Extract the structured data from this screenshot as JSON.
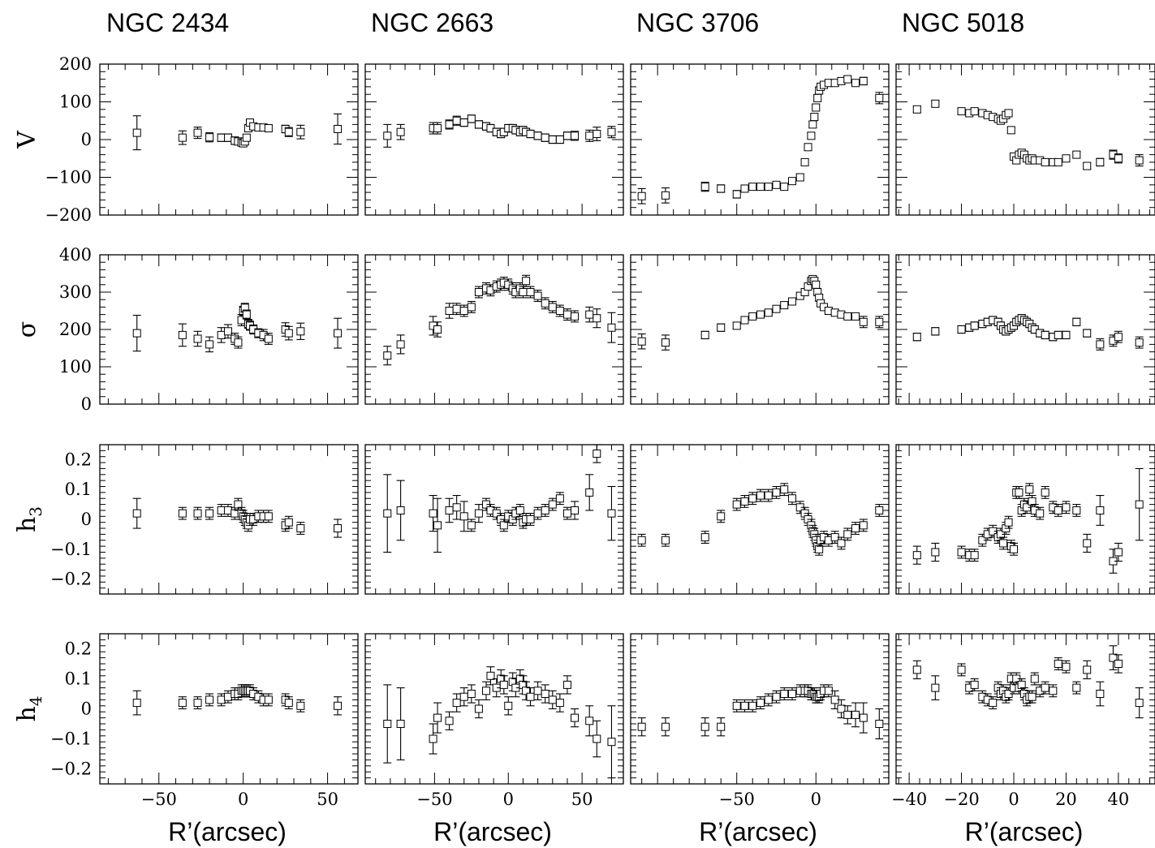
{
  "galaxies": [
    "NGC 2434",
    "NGC 2663",
    "NGC 3706",
    "NGC 5018"
  ],
  "x_axis_label": "R’(arcsec)",
  "rows": [
    {
      "key": "V",
      "label": "V",
      "sub": "",
      "ylim": [
        -200,
        200
      ],
      "ticks": [
        -200,
        -100,
        0,
        100,
        200
      ],
      "tick_labels": [
        "−200",
        "−100",
        "0",
        "100",
        "200"
      ]
    },
    {
      "key": "sigma",
      "label": "σ",
      "sub": "",
      "ylim": [
        0,
        400
      ],
      "ticks": [
        0,
        100,
        200,
        300,
        400
      ],
      "tick_labels": [
        "0",
        "100",
        "200",
        "300",
        "400"
      ]
    },
    {
      "key": "h3",
      "label": "h",
      "sub": "3",
      "ylim": [
        -0.25,
        0.25
      ],
      "ticks": [
        -0.2,
        -0.1,
        0,
        0.1,
        0.2
      ],
      "tick_labels": [
        "−0.2",
        "−0.1",
        "0",
        "0.1",
        "0.2"
      ]
    },
    {
      "key": "h4",
      "label": "h",
      "sub": "4",
      "ylim": [
        -0.25,
        0.25
      ],
      "ticks": [
        -0.2,
        -0.1,
        0,
        0.1,
        0.2
      ],
      "tick_labels": [
        "−0.2",
        "−0.1",
        "0",
        "0.1",
        "0.2"
      ]
    }
  ],
  "columns": [
    {
      "xlim": [
        -85,
        68
      ],
      "ticks": [
        -50,
        0,
        50
      ],
      "tick_labels": [
        "−50",
        "0",
        "50"
      ]
    },
    {
      "xlim": [
        -97,
        78
      ],
      "ticks": [
        -50,
        0,
        50
      ],
      "tick_labels": [
        "−50",
        "0",
        "50"
      ]
    },
    {
      "xlim": [
        -117,
        46
      ],
      "ticks": [
        -50,
        0
      ],
      "tick_labels": [
        "−50",
        "0"
      ]
    },
    {
      "xlim": [
        -45,
        54
      ],
      "ticks": [
        -40,
        -20,
        0,
        20,
        40
      ],
      "tick_labels": [
        "−40",
        "−20",
        "0",
        "20",
        "40"
      ]
    }
  ],
  "chart_data": [
    {
      "type": "scatter",
      "galaxy": "NGC 2434",
      "x": [
        -63,
        -36,
        -27,
        -20,
        -13,
        -9,
        -5,
        -3,
        -1,
        0,
        1,
        2,
        3,
        4,
        6,
        9,
        12,
        15,
        25,
        27,
        34,
        56
      ],
      "V": [
        18,
        5,
        18,
        6,
        5,
        5,
        -3,
        -5,
        -8,
        -10,
        -5,
        5,
        30,
        45,
        35,
        32,
        32,
        30,
        28,
        20,
        20,
        28
      ],
      "V_err": [
        45,
        18,
        15,
        12,
        10,
        10,
        10,
        8,
        8,
        8,
        8,
        8,
        8,
        8,
        8,
        8,
        8,
        8,
        10,
        12,
        18,
        40
      ],
      "sigma": [
        190,
        185,
        175,
        160,
        185,
        195,
        175,
        165,
        225,
        250,
        258,
        240,
        215,
        210,
        200,
        190,
        185,
        175,
        200,
        190,
        195,
        190
      ],
      "sigma_err": [
        48,
        30,
        20,
        20,
        20,
        18,
        15,
        15,
        15,
        12,
        12,
        12,
        12,
        12,
        12,
        12,
        15,
        15,
        18,
        18,
        22,
        40
      ],
      "h3": [
        0.02,
        0.02,
        0.02,
        0.02,
        0.03,
        0.03,
        0.02,
        0.05,
        0.02,
        0.01,
        0.0,
        -0.01,
        -0.02,
        0.0,
        0.0,
        0.01,
        0.01,
        0.01,
        -0.02,
        -0.01,
        -0.03,
        -0.03
      ],
      "h3_err": [
        0.05,
        0.02,
        0.02,
        0.02,
        0.02,
        0.02,
        0.02,
        0.02,
        0.02,
        0.02,
        0.02,
        0.02,
        0.02,
        0.02,
        0.02,
        0.02,
        0.02,
        0.02,
        0.02,
        0.02,
        0.02,
        0.03
      ],
      "h4": [
        0.02,
        0.02,
        0.02,
        0.03,
        0.03,
        0.04,
        0.05,
        0.05,
        0.06,
        0.06,
        0.06,
        0.06,
        0.06,
        0.06,
        0.05,
        0.04,
        0.03,
        0.03,
        0.03,
        0.02,
        0.01,
        0.01
      ],
      "h4_err": [
        0.04,
        0.02,
        0.02,
        0.02,
        0.02,
        0.02,
        0.02,
        0.02,
        0.02,
        0.02,
        0.02,
        0.02,
        0.02,
        0.02,
        0.02,
        0.02,
        0.02,
        0.02,
        0.02,
        0.02,
        0.02,
        0.03
      ]
    },
    {
      "type": "scatter",
      "galaxy": "NGC 2663",
      "x": [
        -82,
        -73,
        -51,
        -48,
        -40,
        -35,
        -30,
        -25,
        -20,
        -15,
        -12,
        -8,
        -5,
        -3,
        0,
        3,
        5,
        8,
        10,
        12,
        15,
        20,
        25,
        30,
        35,
        40,
        45,
        55,
        60,
        70
      ],
      "V": [
        10,
        20,
        30,
        30,
        40,
        50,
        45,
        55,
        40,
        35,
        30,
        20,
        15,
        20,
        30,
        30,
        25,
        20,
        25,
        20,
        15,
        10,
        5,
        0,
        0,
        10,
        10,
        10,
        15,
        20
      ],
      "V_err": [
        30,
        20,
        15,
        15,
        12,
        12,
        10,
        10,
        10,
        10,
        10,
        10,
        10,
        10,
        10,
        10,
        10,
        10,
        10,
        10,
        10,
        10,
        10,
        10,
        10,
        10,
        12,
        15,
        18,
        15
      ],
      "sigma": [
        130,
        160,
        210,
        200,
        250,
        255,
        250,
        260,
        300,
        310,
        305,
        315,
        320,
        325,
        320,
        310,
        300,
        310,
        300,
        330,
        300,
        290,
        270,
        260,
        250,
        240,
        235,
        240,
        230,
        205
      ],
      "sigma_err": [
        25,
        25,
        25,
        20,
        20,
        15,
        15,
        15,
        15,
        15,
        15,
        15,
        15,
        15,
        15,
        15,
        15,
        15,
        15,
        15,
        15,
        15,
        15,
        15,
        15,
        15,
        15,
        20,
        25,
        40
      ],
      "h3": [
        0.02,
        0.03,
        0.02,
        -0.02,
        0.03,
        0.04,
        0.01,
        -0.02,
        0.02,
        0.05,
        0.03,
        0.02,
        0.0,
        -0.02,
        0.01,
        0.0,
        0.02,
        0.03,
        -0.01,
        0.0,
        0.0,
        0.02,
        0.03,
        0.05,
        0.07,
        0.02,
        0.03,
        0.09,
        0.22,
        0.02
      ],
      "h3_err": [
        0.13,
        0.1,
        0.06,
        0.09,
        0.04,
        0.04,
        0.05,
        0.02,
        0.03,
        0.02,
        0.02,
        0.02,
        0.02,
        0.02,
        0.02,
        0.02,
        0.02,
        0.02,
        0.02,
        0.02,
        0.02,
        0.02,
        0.02,
        0.02,
        0.02,
        0.02,
        0.03,
        0.06,
        0.03,
        0.09
      ],
      "h4": [
        -0.05,
        -0.05,
        -0.1,
        -0.03,
        -0.04,
        0.02,
        0.04,
        0.05,
        0.0,
        0.06,
        0.11,
        0.07,
        0.1,
        0.08,
        0.01,
        0.09,
        0.07,
        0.1,
        0.08,
        0.06,
        0.04,
        0.06,
        0.05,
        0.03,
        0.02,
        0.08,
        -0.03,
        -0.04,
        -0.1,
        -0.11
      ],
      "h4_err": [
        0.13,
        0.12,
        0.05,
        0.05,
        0.03,
        0.03,
        0.03,
        0.03,
        0.03,
        0.03,
        0.03,
        0.03,
        0.03,
        0.03,
        0.03,
        0.03,
        0.03,
        0.03,
        0.03,
        0.03,
        0.03,
        0.03,
        0.03,
        0.03,
        0.03,
        0.03,
        0.03,
        0.05,
        0.06,
        0.12
      ]
    },
    {
      "type": "scatter",
      "galaxy": "NGC 3706",
      "x": [
        -110,
        -95,
        -70,
        -60,
        -50,
        -45,
        -40,
        -35,
        -30,
        -25,
        -20,
        -15,
        -10,
        -7,
        -5,
        -3,
        -2,
        -1,
        0,
        1,
        2,
        3,
        5,
        8,
        12,
        16,
        20,
        25,
        30,
        40
      ],
      "V": [
        -150,
        -148,
        -125,
        -130,
        -145,
        -130,
        -125,
        -125,
        -125,
        -120,
        -125,
        -110,
        -100,
        -60,
        -20,
        10,
        40,
        60,
        85,
        110,
        130,
        140,
        145,
        150,
        150,
        155,
        160,
        150,
        155,
        110
      ],
      "V_err": [
        20,
        20,
        12,
        10,
        10,
        8,
        8,
        8,
        8,
        8,
        8,
        8,
        8,
        8,
        8,
        8,
        8,
        8,
        8,
        8,
        8,
        8,
        8,
        8,
        8,
        8,
        8,
        8,
        10,
        15
      ],
      "sigma": [
        168,
        165,
        185,
        205,
        210,
        225,
        235,
        240,
        245,
        255,
        265,
        275,
        290,
        300,
        315,
        330,
        335,
        330,
        320,
        300,
        285,
        270,
        260,
        250,
        245,
        240,
        235,
        235,
        220,
        220
      ],
      "sigma_err": [
        20,
        20,
        10,
        10,
        8,
        8,
        8,
        8,
        8,
        8,
        8,
        8,
        8,
        8,
        8,
        8,
        8,
        8,
        8,
        8,
        8,
        8,
        8,
        8,
        8,
        8,
        8,
        8,
        15,
        15
      ],
      "h3": [
        -0.07,
        -0.07,
        -0.06,
        0.01,
        0.05,
        0.06,
        0.07,
        0.08,
        0.08,
        0.09,
        0.1,
        0.07,
        0.04,
        0.02,
        0.0,
        -0.02,
        -0.04,
        -0.05,
        -0.07,
        -0.09,
        -0.1,
        -0.07,
        -0.06,
        -0.07,
        -0.06,
        -0.08,
        -0.05,
        -0.03,
        -0.02,
        0.03
      ],
      "h3_err": [
        0.02,
        0.02,
        0.02,
        0.02,
        0.02,
        0.02,
        0.02,
        0.02,
        0.02,
        0.02,
        0.02,
        0.02,
        0.02,
        0.02,
        0.02,
        0.02,
        0.02,
        0.02,
        0.02,
        0.02,
        0.02,
        0.02,
        0.02,
        0.02,
        0.02,
        0.02,
        0.02,
        0.02,
        0.02,
        0.02
      ],
      "h4": [
        -0.06,
        -0.06,
        -0.06,
        -0.06,
        0.01,
        0.01,
        0.01,
        0.02,
        0.03,
        0.04,
        0.05,
        0.05,
        0.06,
        0.06,
        0.06,
        0.05,
        0.05,
        0.05,
        0.04,
        0.04,
        0.04,
        0.05,
        0.06,
        0.06,
        0.03,
        0.0,
        -0.02,
        -0.02,
        -0.03,
        -0.05
      ],
      "h4_err": [
        0.03,
        0.03,
        0.03,
        0.03,
        0.02,
        0.02,
        0.02,
        0.02,
        0.02,
        0.02,
        0.02,
        0.02,
        0.02,
        0.02,
        0.02,
        0.02,
        0.02,
        0.02,
        0.02,
        0.02,
        0.02,
        0.02,
        0.02,
        0.02,
        0.03,
        0.03,
        0.03,
        0.04,
        0.05,
        0.05
      ],
      "note": ""
    },
    {
      "type": "scatter",
      "galaxy": "NGC 5018",
      "x": [
        -37,
        -30,
        -20,
        -17,
        -15,
        -12,
        -10,
        -8,
        -6,
        -5,
        -4,
        -3,
        -2,
        -1,
        0,
        1,
        2,
        3,
        4,
        5,
        6,
        7,
        8,
        10,
        12,
        15,
        17,
        20,
        24,
        28,
        33,
        38,
        40,
        48
      ],
      "V": [
        80,
        95,
        75,
        70,
        75,
        70,
        65,
        60,
        55,
        50,
        55,
        65,
        70,
        25,
        -45,
        -55,
        -40,
        -35,
        -40,
        -50,
        -55,
        -50,
        -55,
        -55,
        -60,
        -60,
        -60,
        -50,
        -40,
        -70,
        -60,
        -40,
        -50,
        -55
      ],
      "V_err": [
        8,
        8,
        8,
        8,
        8,
        8,
        8,
        8,
        8,
        8,
        8,
        8,
        8,
        8,
        8,
        8,
        8,
        8,
        8,
        8,
        8,
        8,
        8,
        8,
        8,
        8,
        8,
        8,
        8,
        8,
        10,
        12,
        12,
        15
      ],
      "sigma": [
        180,
        195,
        200,
        205,
        210,
        215,
        220,
        225,
        220,
        210,
        200,
        195,
        200,
        205,
        210,
        220,
        225,
        230,
        225,
        220,
        215,
        205,
        200,
        190,
        185,
        180,
        185,
        185,
        220,
        190,
        160,
        170,
        180,
        165
      ],
      "sigma_err": [
        10,
        10,
        10,
        10,
        10,
        10,
        10,
        10,
        10,
        10,
        10,
        10,
        10,
        10,
        10,
        10,
        10,
        10,
        10,
        10,
        10,
        10,
        10,
        10,
        10,
        10,
        10,
        10,
        10,
        10,
        15,
        15,
        15,
        15
      ],
      "h3": [
        -0.12,
        -0.11,
        -0.11,
        -0.12,
        -0.12,
        -0.07,
        -0.05,
        -0.04,
        -0.06,
        -0.05,
        -0.08,
        -0.03,
        -0.01,
        -0.09,
        -0.1,
        0.09,
        0.09,
        0.03,
        0.05,
        0.04,
        0.1,
        0.06,
        0.03,
        0.02,
        0.09,
        0.04,
        0.03,
        0.04,
        0.03,
        -0.08,
        0.03,
        -0.14,
        -0.11,
        0.05
      ],
      "h3_err": [
        0.03,
        0.03,
        0.02,
        0.02,
        0.02,
        0.02,
        0.02,
        0.02,
        0.02,
        0.02,
        0.02,
        0.02,
        0.02,
        0.02,
        0.02,
        0.02,
        0.02,
        0.02,
        0.02,
        0.02,
        0.02,
        0.02,
        0.02,
        0.02,
        0.02,
        0.02,
        0.02,
        0.02,
        0.02,
        0.03,
        0.05,
        0.04,
        0.03,
        0.12
      ],
      "h4": [
        0.13,
        0.07,
        0.13,
        0.07,
        0.08,
        0.04,
        0.03,
        0.02,
        0.07,
        0.05,
        0.06,
        0.04,
        0.05,
        0.1,
        0.07,
        0.1,
        0.07,
        0.08,
        0.05,
        0.03,
        0.04,
        0.04,
        0.1,
        0.06,
        0.07,
        0.06,
        0.15,
        0.14,
        0.07,
        0.13,
        0.05,
        0.17,
        0.15,
        0.02
      ],
      "h4_err": [
        0.03,
        0.04,
        0.02,
        0.02,
        0.02,
        0.02,
        0.02,
        0.02,
        0.02,
        0.02,
        0.02,
        0.02,
        0.02,
        0.02,
        0.02,
        0.02,
        0.02,
        0.02,
        0.02,
        0.02,
        0.02,
        0.02,
        0.02,
        0.02,
        0.02,
        0.02,
        0.02,
        0.02,
        0.02,
        0.03,
        0.04,
        0.04,
        0.03,
        0.05
      ]
    }
  ]
}
